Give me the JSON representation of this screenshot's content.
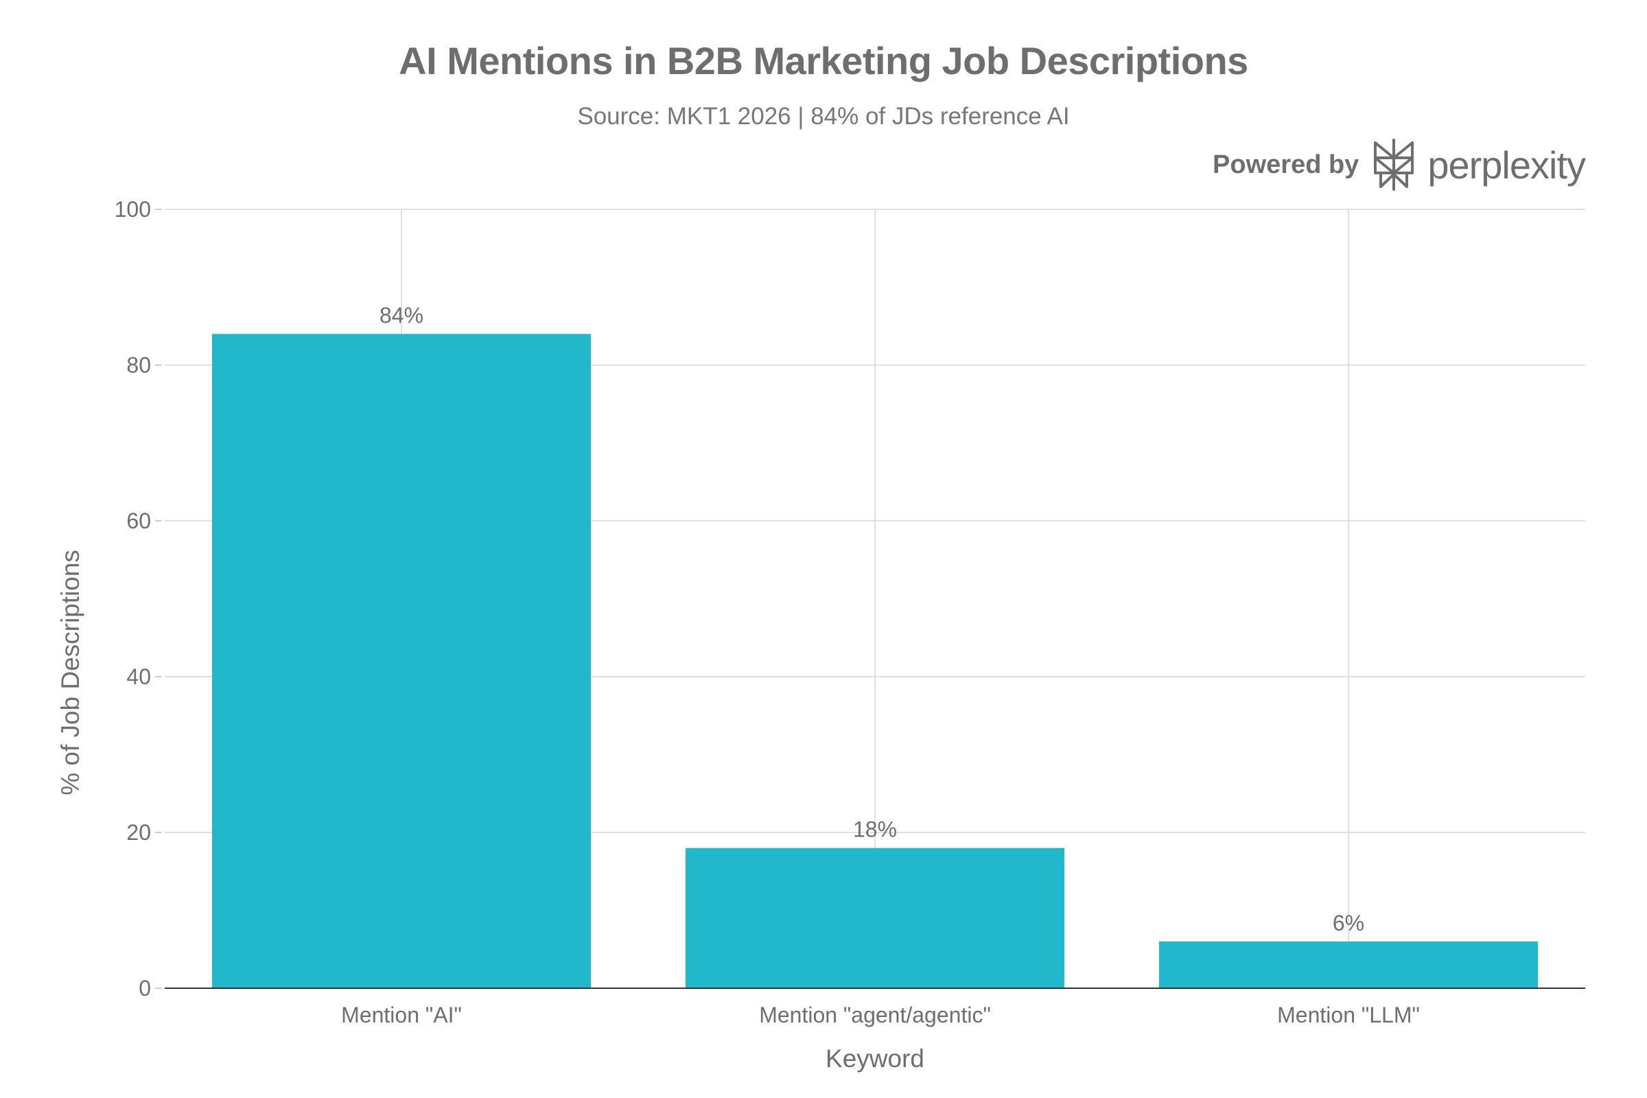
{
  "chart_data": {
    "type": "bar",
    "title": "AI Mentions in B2B Marketing Job Descriptions",
    "subtitle": "Source: MKT1 2026 | 84% of JDs reference AI",
    "xlabel": "Keyword",
    "ylabel": "% of Job Descriptions",
    "categories": [
      "Mention \"AI\"",
      "Mention \"agent/agentic\"",
      "Mention \"LLM\""
    ],
    "values": [
      84,
      18,
      6
    ],
    "data_labels": [
      "84%",
      "18%",
      "6%"
    ],
    "ylim": [
      0,
      100
    ],
    "yticks": [
      0,
      20,
      40,
      60,
      80,
      100
    ],
    "grid": true,
    "legend": "none",
    "bar_color": "#21b8cc"
  },
  "branding": {
    "powered_by": "Powered by",
    "name": "perplexity",
    "logo_icon": "perplexity-logo-icon"
  }
}
